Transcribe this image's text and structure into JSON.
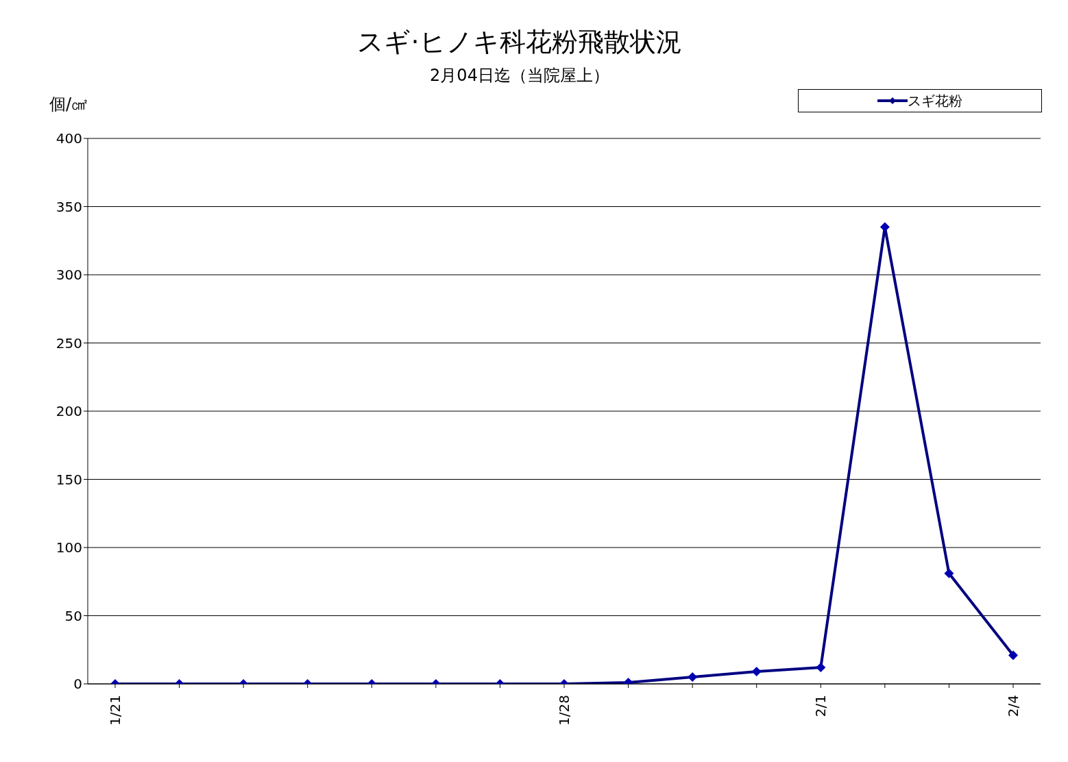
{
  "chart_data": {
    "type": "line",
    "title": "スギ·ヒノキ科花粉飛散状況",
    "subtitle": "2月04日迄（当院屋上）",
    "ylabel": "個/㎠",
    "categories": [
      "1/21",
      null,
      null,
      null,
      null,
      null,
      null,
      "1/28",
      null,
      null,
      null,
      "2/1",
      null,
      null,
      "2/4"
    ],
    "series": [
      {
        "name": "スギ花粉",
        "color": "#000080",
        "values": [
          0,
          0,
          0,
          0,
          0,
          0,
          0,
          0,
          1,
          5,
          9,
          12,
          335,
          81,
          21
        ]
      }
    ],
    "ylim": [
      0,
      400
    ],
    "yticks": [
      0,
      50,
      100,
      150,
      200,
      250,
      300,
      350,
      400
    ],
    "grid": "y",
    "legend": "top right",
    "marker": "diamond",
    "line_style": "solid"
  }
}
